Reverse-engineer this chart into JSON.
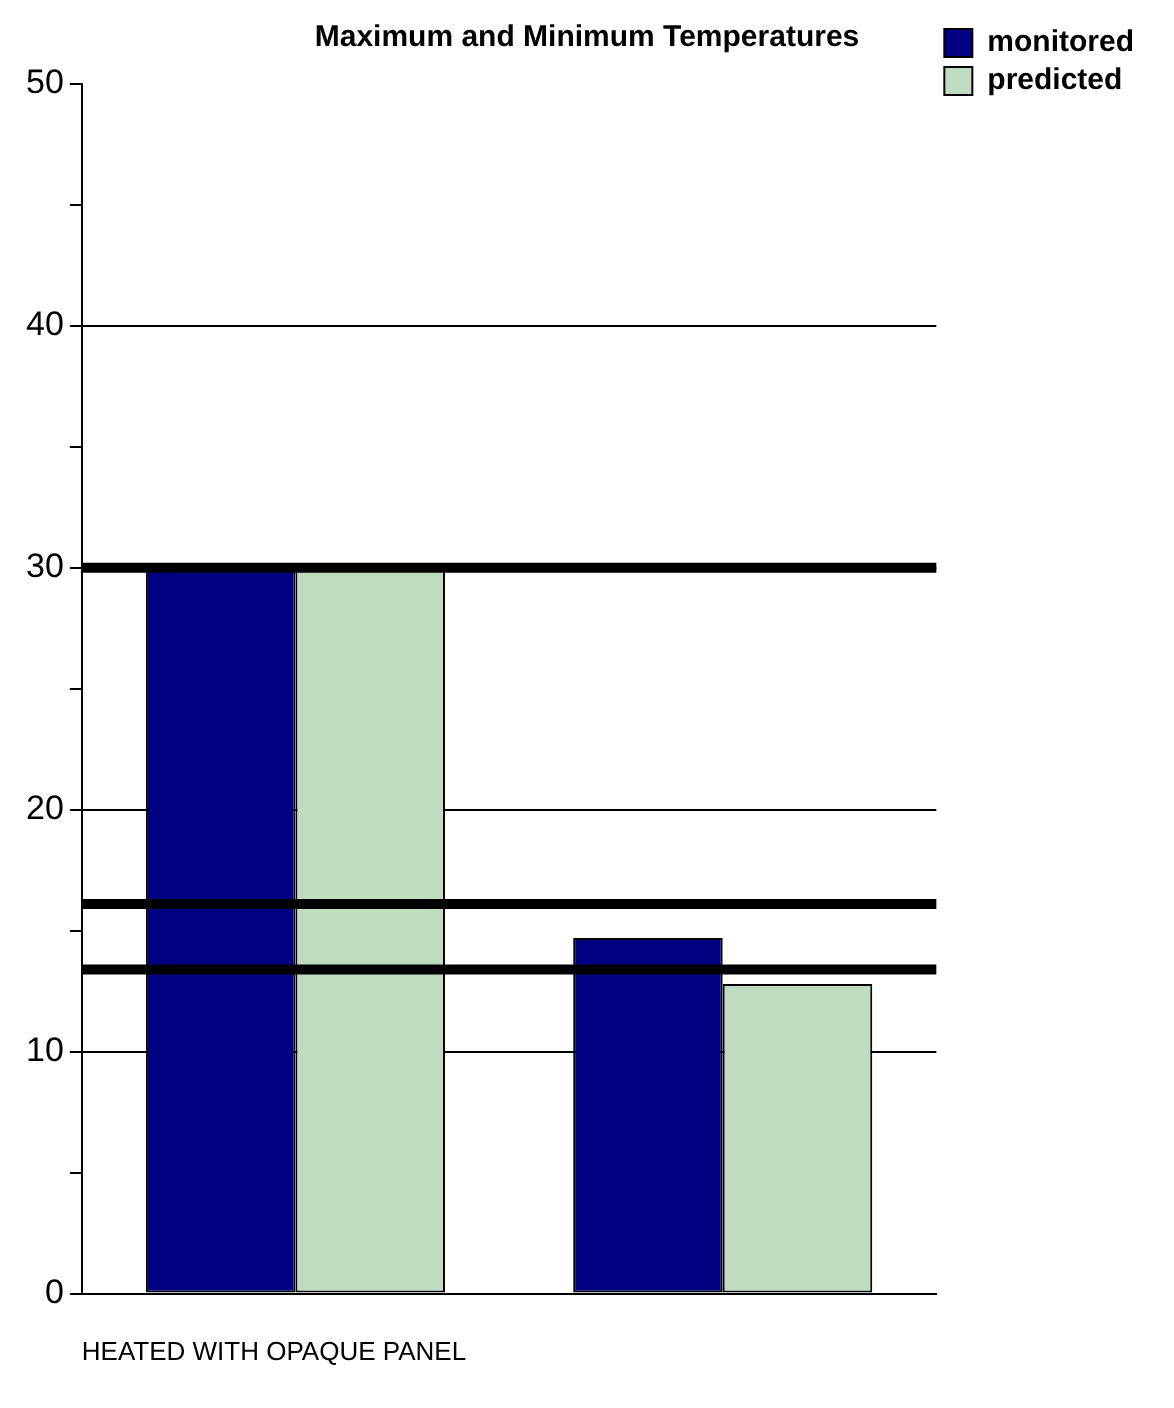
{
  "chart_data": {
    "type": "bar",
    "title": "Maximum and Minimum Temperatures",
    "xlabel": "HEATED WITH OPAQUE PANEL",
    "categories": [
      null,
      null
    ],
    "series": [
      {
        "name": "monitored",
        "color": "#000080",
        "values": [
          30,
          14.7
        ]
      },
      {
        "name": "predicted",
        "color": "#c0dcc0",
        "values": [
          30,
          12.8
        ]
      }
    ],
    "ylim": [
      0,
      50
    ],
    "yticks": [
      0,
      {
        "value": 5,
        "label": null
      },
      10,
      {
        "value": 15,
        "label": null
      },
      20,
      {
        "value": 25,
        "label": null
      },
      30,
      {
        "value": 35,
        "label": null
      },
      40,
      {
        "value": 45,
        "label": null
      },
      50
    ],
    "grid": "y",
    "legend": "top right",
    "ref_lines": [
      {
        "axis": "y",
        "value": 30,
        "color": "#000000"
      },
      {
        "axis": "y",
        "value": 16.1,
        "color": "#000000"
      },
      {
        "axis": "y",
        "value": 13.4,
        "color": "#000000"
      }
    ]
  }
}
